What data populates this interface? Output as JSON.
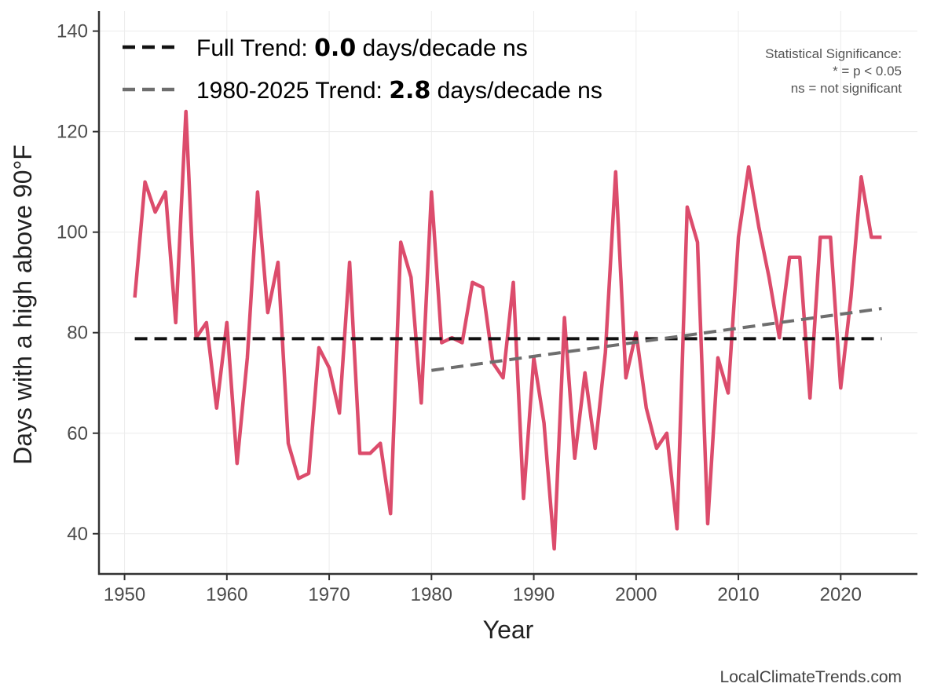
{
  "chart_data": {
    "type": "line",
    "xlabel": "Year",
    "ylabel": "Days with a high above 90°F",
    "xlim": [
      1947.5,
      2027.5
    ],
    "ylim": [
      32,
      144
    ],
    "x_ticks": [
      1950,
      1960,
      1970,
      1980,
      1990,
      2000,
      2010,
      2020
    ],
    "y_ticks": [
      40,
      60,
      80,
      100,
      120,
      140
    ],
    "grid": true,
    "series": [
      {
        "name": "Days above 90°F",
        "color": "#dc4c6c",
        "x": [
          1951,
          1952,
          1953,
          1954,
          1955,
          1956,
          1957,
          1958,
          1959,
          1960,
          1961,
          1962,
          1963,
          1964,
          1965,
          1966,
          1967,
          1968,
          1969,
          1970,
          1971,
          1972,
          1973,
          1974,
          1975,
          1976,
          1977,
          1978,
          1979,
          1980,
          1981,
          1982,
          1983,
          1984,
          1985,
          1986,
          1987,
          1988,
          1989,
          1990,
          1991,
          1992,
          1993,
          1994,
          1995,
          1996,
          1997,
          1998,
          1999,
          2000,
          2001,
          2002,
          2003,
          2004,
          2005,
          2006,
          2007,
          2008,
          2009,
          2010,
          2011,
          2012,
          2013,
          2014,
          2015,
          2016,
          2017,
          2018,
          2019,
          2020,
          2021,
          2022,
          2023,
          2024
        ],
        "values": [
          87,
          110,
          104,
          108,
          82,
          124,
          79,
          82,
          65,
          82,
          54,
          75,
          108,
          84,
          94,
          58,
          51,
          52,
          77,
          73,
          64,
          94,
          56,
          56,
          58,
          44,
          98,
          91,
          66,
          108,
          78,
          79,
          78,
          90,
          89,
          74,
          71,
          90,
          47,
          75,
          62,
          37,
          83,
          55,
          72,
          57,
          76,
          112,
          71,
          80,
          65,
          57,
          60,
          41,
          105,
          98,
          42,
          75,
          68,
          99,
          113,
          101,
          91,
          79,
          95,
          95,
          67,
          99,
          99,
          69,
          87,
          111,
          99,
          99
        ]
      }
    ],
    "trend_lines": [
      {
        "name": "Full Trend",
        "x": [
          1951,
          2024
        ],
        "values": [
          78.8,
          78.8
        ],
        "color": "#111111"
      },
      {
        "name": "1980-2025 Trend",
        "x": [
          1980,
          2024
        ],
        "values": [
          72.5,
          84.8
        ],
        "color": "#6e6e6e"
      }
    ],
    "legend": {
      "position": "top-left",
      "entries": [
        {
          "prefix": "Full Trend: ",
          "value": "0.0",
          "suffix": " days/decade ns",
          "color": "#111111"
        },
        {
          "prefix": "1980-2025 Trend: ",
          "value": "2.8",
          "suffix": " days/decade ns",
          "color": "#6e6e6e"
        }
      ]
    },
    "annotation": {
      "position": "top-right",
      "lines": [
        "Statistical Significance:",
        "* = p < 0.05",
        "ns = not significant"
      ]
    },
    "credit": "LocalClimateTrends.com"
  }
}
